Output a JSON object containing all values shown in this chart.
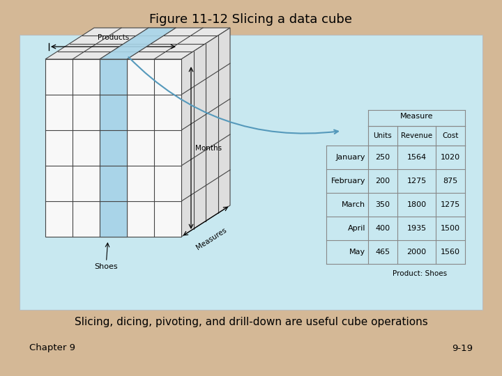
{
  "title": "Figure 11-12 Slicing a data cube",
  "subtitle": "Slicing, dicing, pivoting, and drill-down are useful cube operations",
  "footer_left": "Chapter 9",
  "footer_right": "9-19",
  "bg_outer": "#d4b896",
  "bg_inner": "#c8e8f0",
  "table_headers": [
    "",
    "Units",
    "Revenue",
    "Cost"
  ],
  "measure_label": "Measure",
  "table_rows": [
    [
      "January",
      "250",
      "1564",
      "1020"
    ],
    [
      "February",
      "200",
      "1275",
      "875"
    ],
    [
      "March",
      "350",
      "1800",
      "1275"
    ],
    [
      "April",
      "400",
      "1935",
      "1500"
    ],
    [
      "May",
      "465",
      "2000",
      "1560"
    ]
  ],
  "product_label": "Product: Shoes",
  "cube_label_products": "Products",
  "cube_label_months": "Months",
  "cube_label_measures": "Measures",
  "cube_label_shoes": "Shoes",
  "slice_color": "#a8d4e8",
  "cube_face_front": "#f8f8f8",
  "cube_face_top": "#e8e8e8",
  "cube_face_right": "#dedede",
  "cube_edge_color": "#444444",
  "table_line_color": "#888888",
  "arrow_color": "#5599bb"
}
